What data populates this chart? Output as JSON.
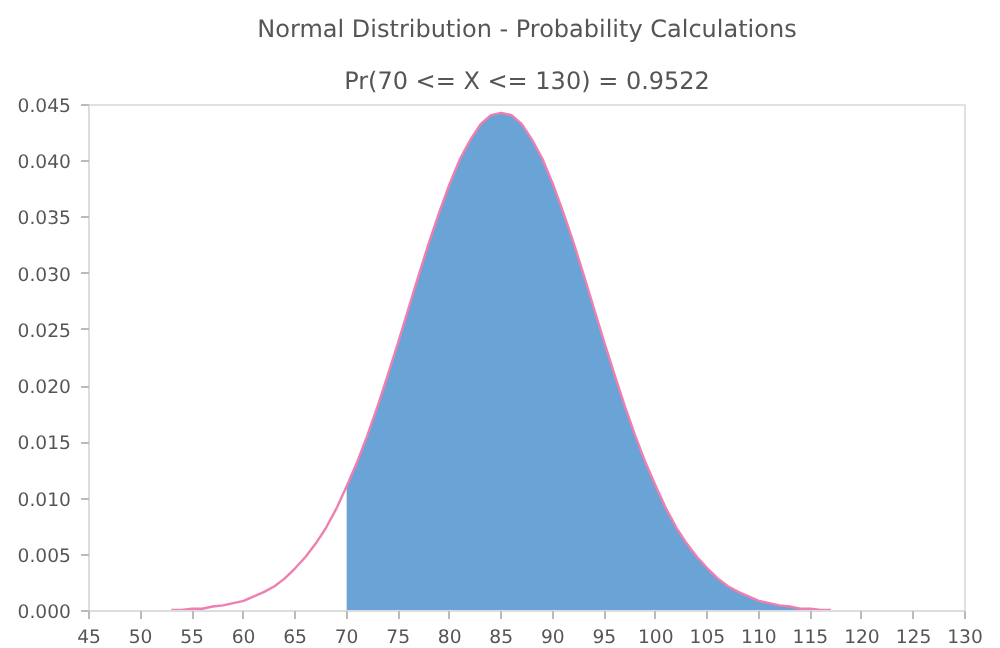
{
  "chart_data": {
    "type": "line",
    "title": "Normal Distribution - Probability Calculations",
    "subtitle": "Pr(70 <= X <= 130) = 0.9522",
    "series": [
      {
        "type": "area",
        "color": "#6aa3d6",
        "x": [
          70,
          71,
          72,
          73,
          74,
          75,
          76,
          77,
          78,
          79,
          80,
          81,
          82,
          83,
          84,
          85,
          86,
          87,
          88,
          89,
          90,
          91,
          92,
          93,
          94,
          95,
          96,
          97,
          98,
          99,
          100,
          101,
          102,
          103,
          104,
          105,
          106,
          107,
          108,
          109,
          110,
          111,
          112,
          113,
          114
        ],
        "values": [
          0.0111,
          0.0132,
          0.0156,
          0.0182,
          0.021,
          0.0239,
          0.0269,
          0.0299,
          0.0328,
          0.0355,
          0.038,
          0.0402,
          0.0419,
          0.0433,
          0.0441,
          0.0443,
          0.0441,
          0.0433,
          0.0419,
          0.0402,
          0.038,
          0.0355,
          0.0328,
          0.0299,
          0.0269,
          0.0239,
          0.021,
          0.0182,
          0.0156,
          0.0132,
          0.0111,
          0.0091,
          0.0074,
          0.006,
          0.0048,
          0.0038,
          0.0029,
          0.0022,
          0.0017,
          0.0013,
          0.0009,
          0.0007,
          0.0005,
          0.0004,
          0.0002
        ]
      },
      {
        "color": "#ee7fb0",
        "x": [
          53,
          54,
          55,
          56,
          57,
          58,
          59,
          60,
          61,
          62,
          63,
          64,
          65,
          66,
          67,
          68,
          69,
          70,
          71,
          72,
          73,
          74,
          75,
          76,
          77,
          78,
          79,
          80,
          81,
          82,
          83,
          84,
          85,
          86,
          87,
          88,
          89,
          90,
          91,
          92,
          93,
          94,
          95,
          96,
          97,
          98,
          99,
          100,
          101,
          102,
          103,
          104,
          105,
          106,
          107,
          108,
          109,
          110,
          111,
          112,
          113,
          114,
          115,
          116,
          117
        ],
        "values": [
          0.0001,
          0.0001,
          0.0002,
          0.0002,
          0.0004,
          0.0005,
          0.0007,
          0.0009,
          0.0013,
          0.0017,
          0.0022,
          0.0029,
          0.0038,
          0.0048,
          0.006,
          0.0074,
          0.0091,
          0.0111,
          0.0132,
          0.0156,
          0.0182,
          0.021,
          0.0239,
          0.0269,
          0.0299,
          0.0328,
          0.0355,
          0.038,
          0.0402,
          0.0419,
          0.0433,
          0.0441,
          0.0443,
          0.0441,
          0.0433,
          0.0419,
          0.0402,
          0.038,
          0.0355,
          0.0328,
          0.0299,
          0.0269,
          0.0239,
          0.021,
          0.0182,
          0.0156,
          0.0132,
          0.0111,
          0.0091,
          0.0074,
          0.006,
          0.0048,
          0.0038,
          0.0029,
          0.0022,
          0.0017,
          0.0013,
          0.0009,
          0.0007,
          0.0005,
          0.0004,
          0.0002,
          0.0002,
          0.0001,
          0.0001
        ]
      }
    ],
    "xlim": [
      45,
      130
    ],
    "xticks": [
      45,
      50,
      55,
      60,
      65,
      70,
      75,
      80,
      85,
      90,
      95,
      100,
      105,
      110,
      115,
      120,
      125,
      130
    ],
    "ylim": [
      0,
      0.045
    ],
    "yticks": [
      {
        "value": 0,
        "label": "0.000"
      },
      {
        "value": 0.005,
        "label": "0.005"
      },
      {
        "value": 0.01,
        "label": "0.010"
      },
      {
        "value": 0.015,
        "label": "0.015"
      },
      {
        "value": 0.02,
        "label": "0.020"
      },
      {
        "value": 0.025,
        "label": "0.025"
      },
      {
        "value": 0.03,
        "label": "0.030"
      },
      {
        "value": 0.035,
        "label": "0.035"
      },
      {
        "value": 0.04,
        "label": "0.040"
      },
      {
        "value": 0.045,
        "label": "0.045"
      }
    ],
    "grid": false
  }
}
